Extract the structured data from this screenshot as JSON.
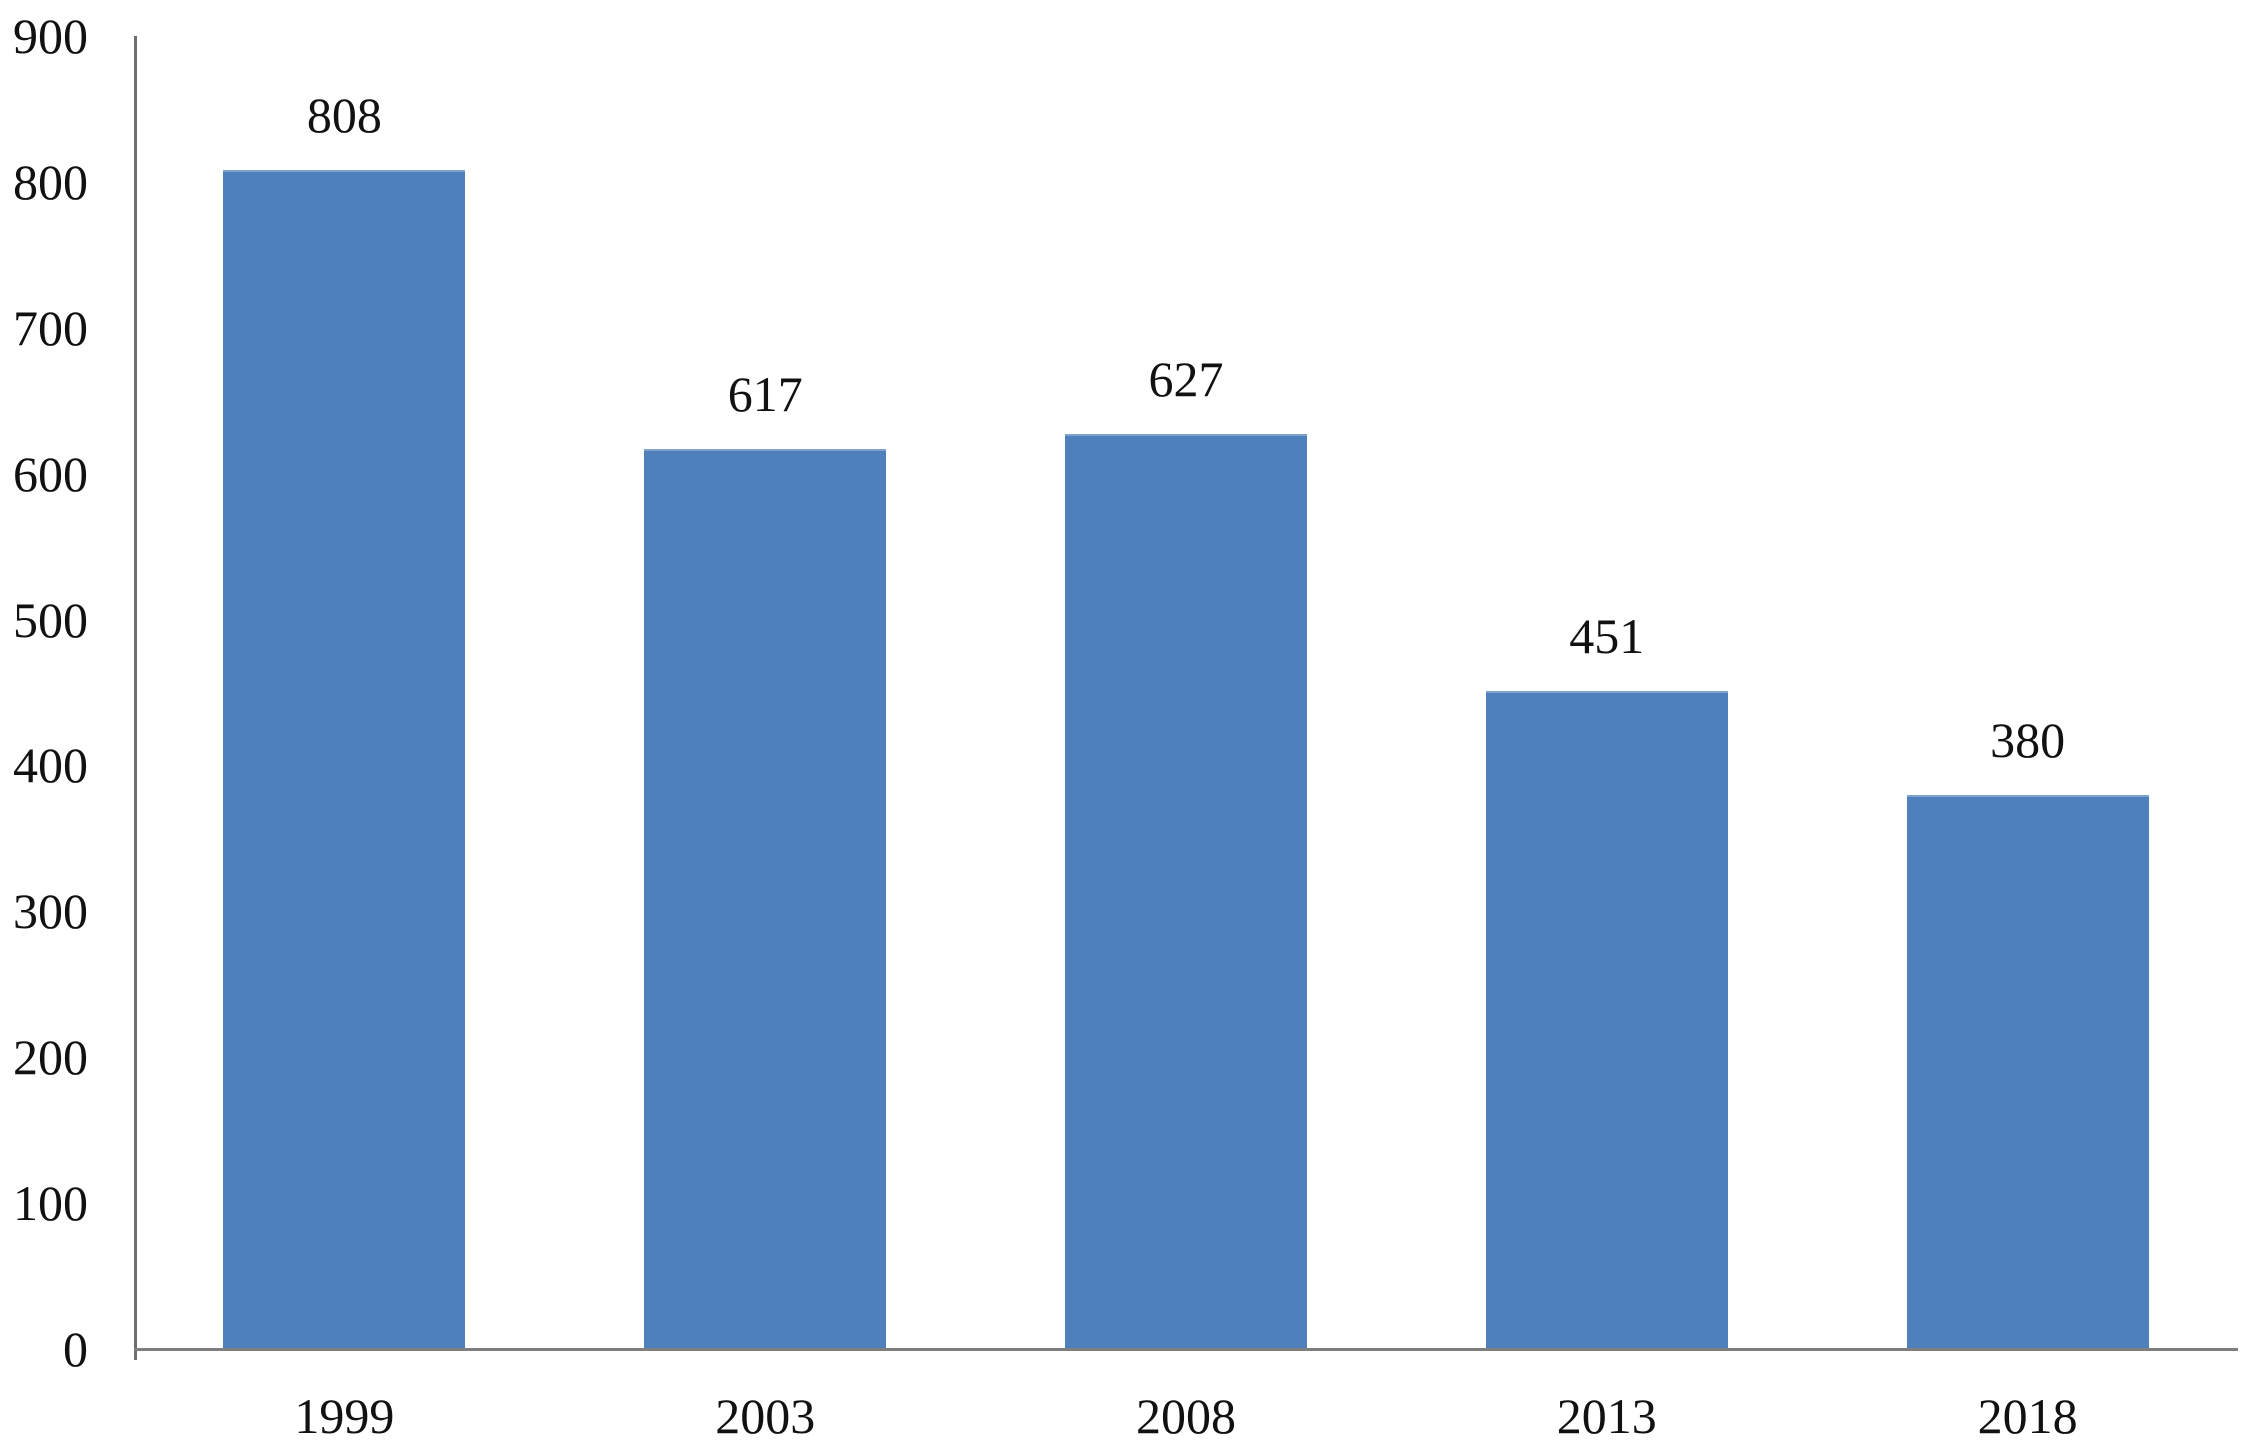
{
  "chart_data": {
    "type": "bar",
    "categories": [
      "1999",
      "2003",
      "2008",
      "2013",
      "2018"
    ],
    "values": [
      808,
      617,
      627,
      451,
      380
    ],
    "data_labels": [
      "808",
      "617",
      "627",
      "451",
      "380"
    ],
    "title": "",
    "xlabel": "",
    "ylabel": "",
    "ylim": [
      0,
      900
    ],
    "y_ticks": [
      0,
      100,
      200,
      300,
      400,
      500,
      600,
      700,
      800,
      900
    ],
    "grid": false,
    "legend": false,
    "colors": {
      "bar_fill": "#4E80BC",
      "x_axis_line": "#7F7F7F",
      "y_axis_line": "#6E6E6E",
      "label_text": "#111111"
    }
  }
}
